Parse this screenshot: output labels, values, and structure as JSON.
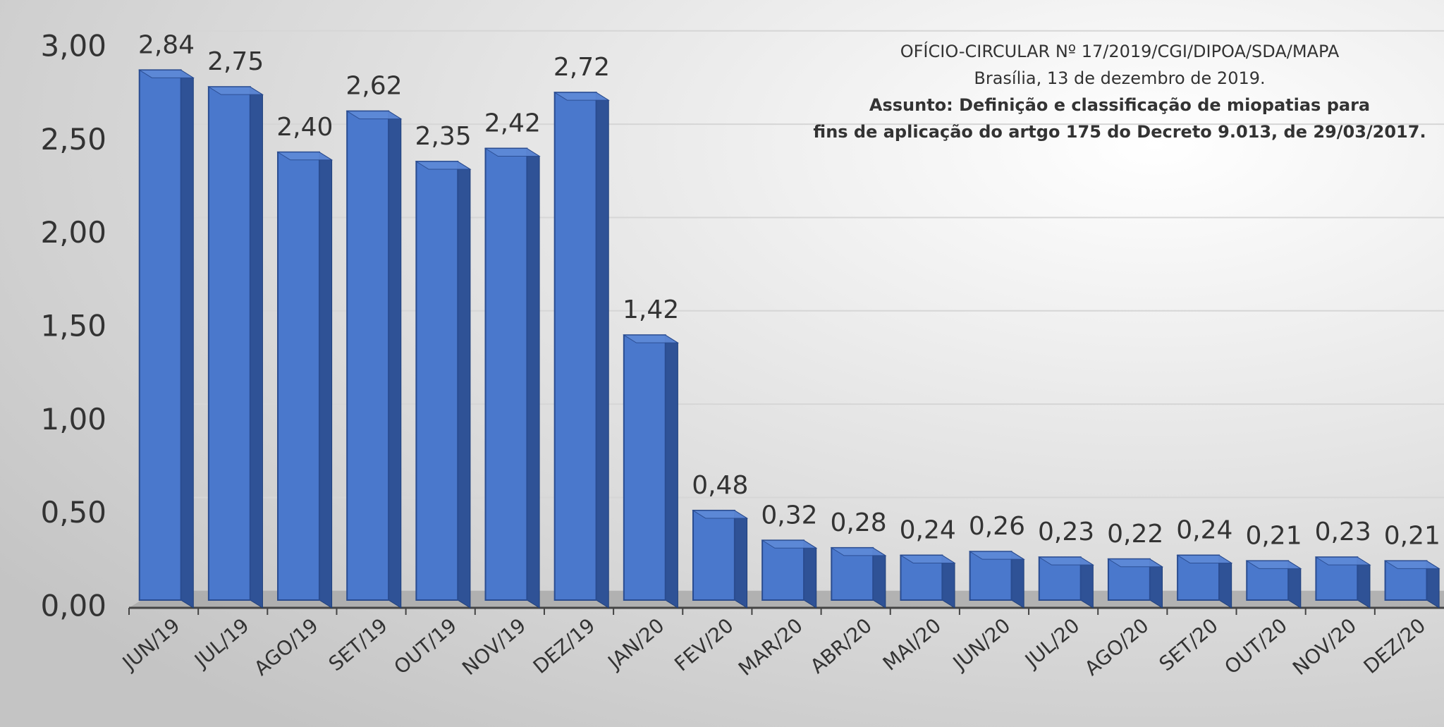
{
  "chart_data": {
    "type": "bar3d",
    "annotation": [
      "OFÍCIO-CIRCULAR Nº 17/2019/CGI/DIPOA/SDA/MAPA",
      "Brasília, 13 de dezembro de 2019.",
      "Assunto: Definição e classificação de miopatias para",
      "fins de aplicação do artgo 175 do Decreto 9.013, de 29/03/2017."
    ],
    "categories": [
      "JUN/19",
      "JUL/19",
      "AGO/19",
      "SET/19",
      "OUT/19",
      "NOV/19",
      "DEZ/19",
      "JAN/20",
      "FEV/20",
      "MAR/20",
      "ABR/20",
      "MAI/20",
      "JUN/20",
      "JUL/20",
      "AGO/20",
      "SET/20",
      "OUT/20",
      "NOV/20",
      "DEZ/20"
    ],
    "values": [
      2.84,
      2.75,
      2.4,
      2.62,
      2.35,
      2.42,
      2.72,
      1.42,
      0.48,
      0.32,
      0.28,
      0.24,
      0.26,
      0.23,
      0.22,
      0.24,
      0.21,
      0.23,
      0.21
    ],
    "value_labels": [
      "2,84",
      "2,75",
      "2,40",
      "2,62",
      "2,35",
      "2,42",
      "2,72",
      "1,42",
      "0,48",
      "0,32",
      "0,28",
      "0,24",
      "0,26",
      "0,23",
      "0,22",
      "0,24",
      "0,21",
      "0,23",
      "0,21"
    ],
    "color": "#4a78cc",
    "ylim": [
      0,
      3
    ],
    "yticks": [
      {
        "value": 0,
        "label": "0,00"
      },
      {
        "value": 0.5,
        "label": "0,50"
      },
      {
        "value": 1,
        "label": "1,00"
      },
      {
        "value": 1.5,
        "label": "1,50"
      },
      {
        "value": 2,
        "label": "2,00"
      },
      {
        "value": 2.5,
        "label": "2,50"
      },
      {
        "value": 3,
        "label": "3,00"
      }
    ],
    "grid": true
  }
}
